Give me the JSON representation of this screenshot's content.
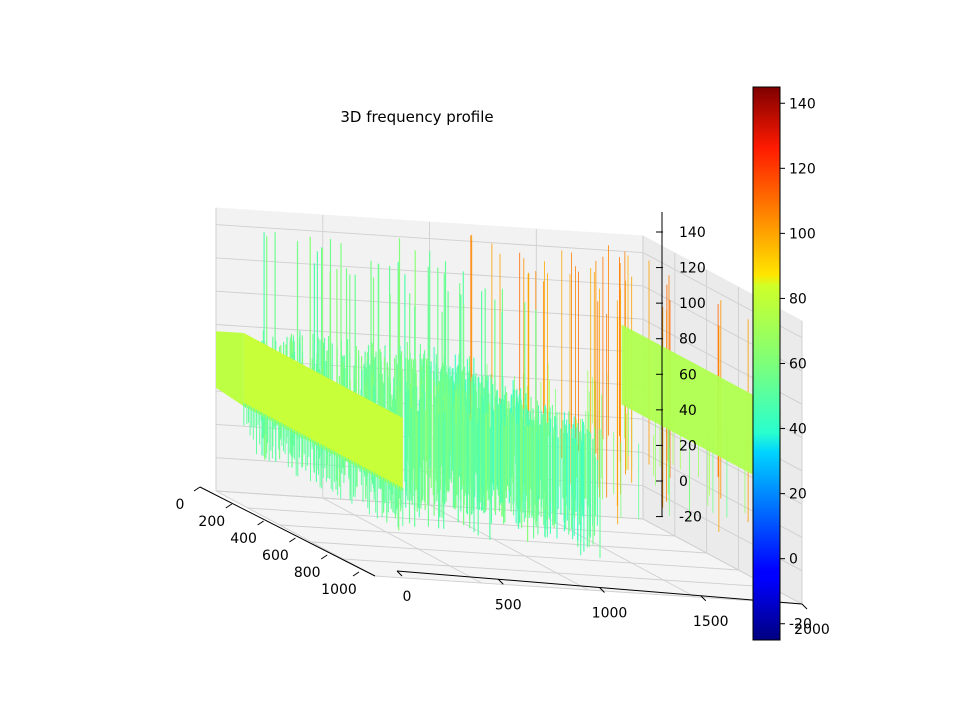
{
  "chart_data": {
    "type": "surface",
    "title": "3D frequency profile",
    "colormap": "jet",
    "xlabel": "",
    "ylabel": "",
    "zlabel": "",
    "x_axis": {
      "range": [
        0,
        1000
      ],
      "ticks": [
        "0",
        "200",
        "400",
        "600",
        "800",
        "1000"
      ]
    },
    "y_axis": {
      "range": [
        0,
        2000
      ],
      "ticks": [
        "0",
        "500",
        "1000",
        "1500",
        "2000"
      ]
    },
    "z_axis": {
      "range": [
        -20,
        150
      ],
      "ticks": [
        "-20",
        "0",
        "20",
        "40",
        "60",
        "80",
        "100",
        "120",
        "140"
      ]
    },
    "colorbar": {
      "range": [
        -25,
        145
      ],
      "ticks": [
        "-20",
        "0",
        "20",
        "40",
        "60",
        "80",
        "100",
        "120",
        "140"
      ]
    },
    "grid": true,
    "surface_profile": {
      "x_values": [
        0,
        10,
        20,
        30,
        40,
        50,
        60,
        70,
        80,
        90,
        100,
        110,
        120,
        130,
        140,
        150,
        160,
        170,
        180,
        190,
        200,
        210,
        220,
        230,
        240,
        250,
        260,
        270,
        280,
        290,
        300,
        310,
        320,
        330,
        340,
        350,
        360,
        370,
        380,
        390,
        400,
        410,
        420,
        430,
        440,
        450,
        460,
        470,
        480,
        490,
        500,
        510,
        520,
        530,
        540,
        550,
        560,
        570,
        580,
        590,
        600,
        610,
        620,
        630,
        640,
        650,
        660,
        670,
        680,
        690,
        700,
        710,
        720,
        730,
        740,
        750,
        760,
        770,
        780,
        790,
        800,
        810,
        820,
        830,
        840,
        850,
        860,
        870,
        880,
        890,
        900,
        910,
        920,
        930,
        940,
        950,
        960,
        970,
        980,
        990,
        1000
      ],
      "band_1": {
        "y_range": [
          0,
          130
        ],
        "top_value": 68,
        "base_value": 52,
        "edge_value": 68
      },
      "band_2": {
        "y_range": [
          130,
          900
        ],
        "top_value": 72,
        "base_value": 30
      },
      "band_3": {
        "y_range": [
          900,
          1100
        ],
        "top_value": 58,
        "base_value": 28
      },
      "band_4": {
        "y_range": [
          1100,
          1900
        ],
        "top_value": 63,
        "base_value": 40,
        "spike_value": 144
      },
      "band_5": {
        "y_range": [
          1900,
          2000
        ],
        "top_value": 68,
        "base_value": 48,
        "edge_value": 68
      }
    }
  }
}
